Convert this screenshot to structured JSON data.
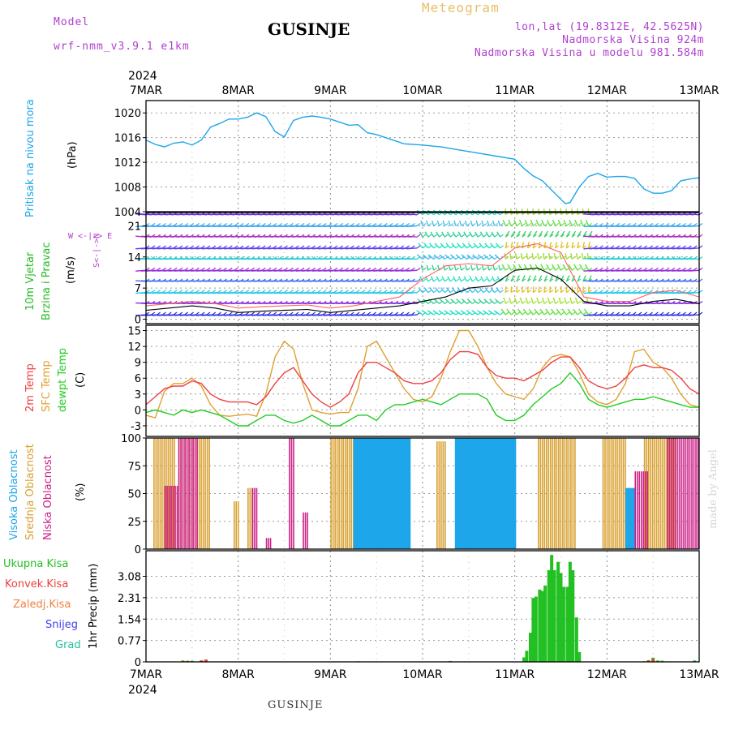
{
  "header": {
    "model_label": "Model",
    "model_version": "wrf-nmm_v3.9.1  e1km",
    "station": "GUSINJE",
    "meteogram": "Meteogram",
    "lonlat": "lon,lat (19.8312E, 42.5625N)",
    "altitude": "Nadmorska Visina 924m",
    "model_altitude": "Nadmorska Visina u modelu 981.584m"
  },
  "footer": {
    "station": "GUSINJE",
    "made_by": "made by Angel"
  },
  "axis": {
    "year": "2024",
    "dates": [
      "7MAR",
      "8MAR",
      "9MAR",
      "10MAR",
      "11MAR",
      "12MAR",
      "13MAR"
    ]
  },
  "panel_labels": {
    "pressure": {
      "name": "Pritisak na nivou mora",
      "unit": "(hPa)"
    },
    "wind": {
      "name1": "10m Vjetar",
      "name2": "Brzina i Pravac",
      "unit": "(m/s)",
      "compass_we": "W <-|-> E",
      "compass_sn": "S<-|->N"
    },
    "temp": {
      "name1": "2m Temp",
      "name2": "SFC Temp",
      "name3": "dewpt Temp",
      "unit": "(C)"
    },
    "cloud": {
      "name1": "Visoka Oblacnost",
      "name2": "Srednja Oblacnost",
      "name3": "Niska Oblacnost",
      "unit": "(%)"
    },
    "precip": {
      "ylabel": "1hr Precip (mm)"
    }
  },
  "precip_legend": [
    "Ukupna Kisa",
    "Konvek.Kisa",
    "Zaledj.Kisa",
    "Snijeg",
    "Grad"
  ],
  "colors": {
    "pressure": "#1ea6ea",
    "temp2m": "#ee4040",
    "sfc": "#e0a030",
    "dewpt": "#22cc22",
    "cloud_high": "#1ea6ea",
    "cloud_mid": "#d8a030",
    "cloud_low": "#cc2288",
    "precip_total": "#22c022",
    "precip_conv": "#ee4040",
    "precip_frz": "#f08040",
    "precip_snow": "#4040ee",
    "precip_hail": "#20c0a0",
    "wind_label": "#22bb22",
    "compass": "#b03fd0"
  },
  "chart_data": [
    {
      "type": "line",
      "panel": "pressure",
      "ylabel": "(hPa)",
      "ylim": [
        1004,
        1022
      ],
      "yticks": [
        1004,
        1008,
        1012,
        1016,
        1020
      ],
      "x_unit": "days since 7MAR 00UTC",
      "series": [
        {
          "name": "Pritisak na nivou mora",
          "x": [
            0,
            0.1,
            0.2,
            0.3,
            0.4,
            0.5,
            0.6,
            0.7,
            0.8,
            0.9,
            1.0,
            1.1,
            1.2,
            1.3,
            1.4,
            1.5,
            1.6,
            1.7,
            1.8,
            1.9,
            2.0,
            2.1,
            2.2,
            2.3,
            2.4,
            2.5,
            2.6,
            2.8,
            3.0,
            3.2,
            3.4,
            3.6,
            3.8,
            4.0,
            4.1,
            4.2,
            4.3,
            4.4,
            4.5,
            4.55,
            4.6,
            4.7,
            4.8,
            4.9,
            5.0,
            5.1,
            5.2,
            5.3,
            5.4,
            5.5,
            5.6,
            5.7,
            5.8,
            5.9,
            6.0
          ],
          "y": [
            1015.6,
            1014.9,
            1014.5,
            1015.1,
            1015.3,
            1014.8,
            1015.6,
            1017.7,
            1018.3,
            1019.0,
            1019.0,
            1019.3,
            1020.0,
            1019.4,
            1017.0,
            1016.1,
            1018.8,
            1019.3,
            1019.5,
            1019.3,
            1019.0,
            1018.5,
            1018.0,
            1018.1,
            1016.8,
            1016.5,
            1016.0,
            1015.0,
            1014.8,
            1014.5,
            1014.0,
            1013.5,
            1013.0,
            1012.5,
            1011.0,
            1009.8,
            1009.0,
            1007.5,
            1006.0,
            1005.3,
            1005.5,
            1008.0,
            1009.7,
            1010.2,
            1009.6,
            1009.7,
            1009.7,
            1009.4,
            1007.7,
            1007.0,
            1007.0,
            1007.4,
            1009.0,
            1009.3,
            1009.5
          ]
        }
      ]
    },
    {
      "type": "line",
      "panel": "wind",
      "ylabel": "(m/s)",
      "ylim": [
        -1,
        24
      ],
      "yticks": [
        0,
        7,
        14,
        21
      ],
      "x_unit": "days since 7MAR 00UTC",
      "barb_rows_ms": [
        1,
        3.5,
        6,
        8.5,
        11,
        13.5,
        16,
        18.5,
        21,
        23.5
      ],
      "series": [
        {
          "name": "speed",
          "x": [
            0,
            0.25,
            0.5,
            0.75,
            1.0,
            1.25,
            1.5,
            1.75,
            2.0,
            2.25,
            2.5,
            2.75,
            3.0,
            3.25,
            3.5,
            3.75,
            4.0,
            4.25,
            4.5,
            4.75,
            5.0,
            5.25,
            5.5,
            5.75,
            6.0
          ],
          "y": [
            2,
            2.5,
            3,
            2.5,
            1.5,
            1.8,
            2,
            2.2,
            1.5,
            2,
            2.5,
            3,
            4,
            5,
            7,
            7.5,
            11,
            11.5,
            9,
            4,
            3,
            3,
            4,
            4.5,
            3.5
          ]
        },
        {
          "name": "gust",
          "x": [
            0,
            0.25,
            0.5,
            0.75,
            1.0,
            1.25,
            1.5,
            1.75,
            2.0,
            2.25,
            2.5,
            2.75,
            3.0,
            3.25,
            3.5,
            3.75,
            4.0,
            4.25,
            4.5,
            4.75,
            5.0,
            5.25,
            5.5,
            5.75,
            6.0
          ],
          "y": [
            3,
            3.5,
            4,
            3.5,
            2.5,
            2.8,
            3,
            3.2,
            2.5,
            3,
            4,
            5,
            9,
            12,
            12.5,
            12,
            16,
            17,
            15,
            5,
            4,
            4,
            6,
            6.5,
            5
          ]
        }
      ]
    },
    {
      "type": "line",
      "panel": "temp",
      "ylabel": "(C)",
      "ylim": [
        -5,
        16
      ],
      "yticks": [
        -3,
        0,
        3,
        6,
        9,
        12,
        15
      ],
      "x_unit": "days since 7MAR 00UTC",
      "series": [
        {
          "name": "2m Temp",
          "x": [
            0,
            0.1,
            0.2,
            0.3,
            0.4,
            0.5,
            0.6,
            0.7,
            0.8,
            0.9,
            1.0,
            1.1,
            1.2,
            1.3,
            1.4,
            1.5,
            1.6,
            1.7,
            1.8,
            1.9,
            2.0,
            2.1,
            2.2,
            2.3,
            2.4,
            2.5,
            2.6,
            2.7,
            2.8,
            2.9,
            3.0,
            3.1,
            3.2,
            3.3,
            3.4,
            3.5,
            3.6,
            3.7,
            3.8,
            3.9,
            4.0,
            4.1,
            4.2,
            4.3,
            4.4,
            4.5,
            4.6,
            4.7,
            4.8,
            4.9,
            5.0,
            5.1,
            5.2,
            5.3,
            5.4,
            5.5,
            5.6,
            5.7,
            5.8,
            5.9,
            6.0
          ],
          "y": [
            1,
            2.5,
            4,
            4.5,
            4.5,
            5.5,
            5,
            3,
            2,
            1.5,
            1.5,
            1.5,
            1,
            2.5,
            5,
            7,
            8,
            5.5,
            3,
            1.5,
            0.5,
            1.5,
            3,
            7,
            9,
            9,
            8,
            7,
            5.5,
            5,
            5,
            5.5,
            7,
            9.5,
            11,
            11,
            10.5,
            8,
            6.5,
            6,
            6,
            5.5,
            6.5,
            7.5,
            9,
            10,
            10,
            8,
            5.5,
            4.5,
            4,
            4.5,
            6,
            8,
            8.5,
            8,
            8,
            7.5,
            6,
            4,
            3
          ]
        },
        {
          "name": "SFC Temp",
          "x": [
            0,
            0.1,
            0.2,
            0.3,
            0.4,
            0.5,
            0.6,
            0.7,
            0.8,
            0.9,
            1.0,
            1.1,
            1.2,
            1.3,
            1.4,
            1.5,
            1.6,
            1.7,
            1.8,
            1.9,
            2.0,
            2.1,
            2.2,
            2.3,
            2.4,
            2.5,
            2.6,
            2.7,
            2.8,
            2.9,
            3.0,
            3.1,
            3.2,
            3.3,
            3.4,
            3.5,
            3.6,
            3.7,
            3.8,
            3.9,
            4.0,
            4.1,
            4.2,
            4.3,
            4.4,
            4.5,
            4.6,
            4.7,
            4.8,
            4.9,
            5.0,
            5.1,
            5.2,
            5.3,
            5.4,
            5.5,
            5.6,
            5.7,
            5.8,
            5.9,
            6.0
          ],
          "y": [
            -1,
            -1.5,
            3.5,
            5,
            5,
            6,
            4.5,
            1,
            -1,
            -1.2,
            -1,
            -0.8,
            -1.2,
            3,
            10,
            13,
            11.5,
            5,
            0,
            -0.5,
            -0.8,
            -0.5,
            -0.5,
            4,
            12,
            13,
            10,
            7,
            4,
            2,
            1.5,
            2.5,
            6,
            11,
            15,
            15,
            12,
            8,
            5,
            3,
            2.5,
            2,
            4,
            8,
            10,
            10.5,
            10,
            7,
            3,
            1.5,
            1,
            2,
            5,
            11,
            11.5,
            9,
            8,
            6,
            3,
            1,
            0.5
          ]
        },
        {
          "name": "dewpt Temp",
          "x": [
            0,
            0.1,
            0.2,
            0.3,
            0.4,
            0.5,
            0.6,
            0.7,
            0.8,
            0.9,
            1.0,
            1.1,
            1.2,
            1.3,
            1.4,
            1.5,
            1.6,
            1.7,
            1.8,
            1.9,
            2.0,
            2.1,
            2.2,
            2.3,
            2.4,
            2.5,
            2.6,
            2.7,
            2.8,
            2.9,
            3.0,
            3.1,
            3.2,
            3.3,
            3.4,
            3.5,
            3.6,
            3.7,
            3.8,
            3.9,
            4.0,
            4.1,
            4.2,
            4.3,
            4.4,
            4.5,
            4.6,
            4.7,
            4.8,
            4.9,
            5.0,
            5.1,
            5.2,
            5.3,
            5.4,
            5.5,
            5.6,
            5.7,
            5.8,
            5.9,
            6.0
          ],
          "y": [
            -0.5,
            0,
            -0.5,
            -1,
            0,
            -0.5,
            0,
            -0.5,
            -1,
            -2,
            -3,
            -3,
            -2,
            -1,
            -1,
            -2,
            -2.5,
            -2,
            -1,
            -2,
            -3,
            -3,
            -2,
            -1,
            -1,
            -2,
            0,
            1,
            1,
            1.5,
            2,
            1.5,
            1,
            2,
            3,
            3,
            3,
            2,
            -1,
            -2,
            -2,
            -1,
            1,
            2.5,
            4,
            5,
            7,
            5,
            2,
            1,
            0.5,
            1,
            1.5,
            2,
            2,
            2.5,
            2,
            1.5,
            1,
            0.5,
            0.5
          ]
        }
      ]
    },
    {
      "type": "bar",
      "panel": "cloud",
      "ylabel": "(%)",
      "ylim": [
        0,
        100
      ],
      "yticks": [
        0,
        25,
        50,
        75,
        100
      ],
      "series": [
        {
          "name": "Srednja Oblacnost",
          "segments": [
            [
              0.08,
              0.3,
              100
            ],
            [
              0.35,
              0.7,
              100
            ],
            [
              0.95,
              1.0,
              43
            ],
            [
              1.1,
              1.15,
              55
            ],
            [
              2.0,
              2.4,
              100
            ],
            [
              2.45,
              2.65,
              100
            ],
            [
              2.68,
              2.75,
              97
            ],
            [
              3.15,
              3.25,
              97
            ],
            [
              3.8,
              4.0,
              97
            ],
            [
              4.25,
              4.65,
              100
            ],
            [
              4.95,
              5.2,
              100
            ],
            [
              5.4,
              5.75,
              100
            ]
          ]
        },
        {
          "name": "Visoka Oblacnost",
          "segments": [
            [
              2.25,
              2.85,
              100
            ],
            [
              3.35,
              4.0,
              100
            ],
            [
              5.2,
              5.3,
              55
            ]
          ]
        },
        {
          "name": "Niska Oblacnost",
          "segments": [
            [
              0.2,
              0.35,
              57
            ],
            [
              0.35,
              0.55,
              100
            ],
            [
              1.15,
              1.2,
              55
            ],
            [
              1.3,
              1.35,
              10
            ],
            [
              1.55,
              1.6,
              100
            ],
            [
              1.7,
              1.75,
              33
            ],
            [
              5.3,
              5.45,
              70
            ],
            [
              5.65,
              6.0,
              100
            ]
          ]
        }
      ]
    },
    {
      "type": "bar",
      "panel": "precip",
      "ylabel": "1hr Precip (mm)",
      "ylim": [
        0,
        4.0
      ],
      "yticks": [
        0,
        0.77,
        1.54,
        2.31,
        3.08
      ],
      "x_unit": "days since 7MAR 00UTC",
      "series": [
        {
          "name": "Ukupna Kisa",
          "x": [
            0.4,
            0.5,
            0.6,
            0.65,
            2.3,
            3.3,
            4.1,
            4.13,
            4.17,
            4.2,
            4.23,
            4.27,
            4.3,
            4.33,
            4.37,
            4.4,
            4.43,
            4.47,
            4.5,
            4.53,
            4.57,
            4.6,
            4.63,
            4.67,
            4.7,
            5.4,
            5.45,
            5.5,
            5.55,
            5.6,
            5.95
          ],
          "y": [
            0.05,
            0.04,
            0.05,
            0.08,
            0.02,
            0.03,
            0.16,
            0.4,
            1.05,
            2.3,
            2.35,
            2.6,
            2.55,
            2.75,
            3.3,
            3.85,
            3.3,
            3.6,
            3.2,
            2.7,
            2.7,
            3.6,
            3.3,
            1.6,
            0.35,
            0.02,
            0.06,
            0.15,
            0.05,
            0.04,
            0.05
          ]
        },
        {
          "name": "Konvek.Kisa",
          "x": [
            0.45,
            0.6,
            0.65,
            5.45,
            5.5
          ],
          "y": [
            0.04,
            0.05,
            0.08,
            0.05,
            0.1
          ]
        }
      ]
    }
  ]
}
